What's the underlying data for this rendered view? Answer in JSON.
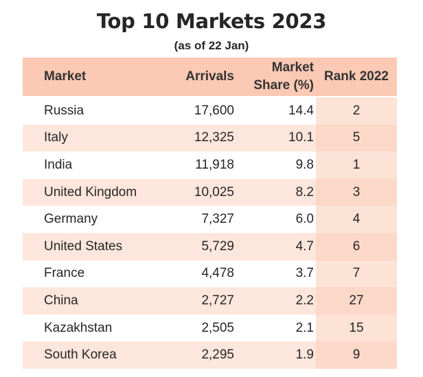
{
  "title": "Top 10 Markets 2023",
  "subtitle": "(as of 22 Jan)",
  "columns": {
    "market": "Market",
    "arrivals": "Arrivals",
    "share_line1": "Market",
    "share_line2": "Share (%)",
    "rank": "Rank 2022"
  },
  "rows": [
    {
      "market": "Russia",
      "arrivals": "17,600",
      "share": "14.4",
      "rank": "2"
    },
    {
      "market": "Italy",
      "arrivals": "12,325",
      "share": "10.1",
      "rank": "5"
    },
    {
      "market": "India",
      "arrivals": "11,918",
      "share": "9.8",
      "rank": "1"
    },
    {
      "market": "United Kingdom",
      "arrivals": "10,025",
      "share": "8.2",
      "rank": "3"
    },
    {
      "market": "Germany",
      "arrivals": "7,327",
      "share": "6.0",
      "rank": "4"
    },
    {
      "market": "United States",
      "arrivals": "5,729",
      "share": "4.7",
      "rank": "6"
    },
    {
      "market": "France",
      "arrivals": "4,478",
      "share": "3.7",
      "rank": "7"
    },
    {
      "market": "China",
      "arrivals": "2,727",
      "share": "2.2",
      "rank": "27"
    },
    {
      "market": "Kazakhstan",
      "arrivals": "2,505",
      "share": "2.1",
      "rank": "15"
    },
    {
      "market": "South Korea",
      "arrivals": "2,295",
      "share": "1.9",
      "rank": "9"
    }
  ],
  "colors": {
    "header_bg": "#fbc9b4",
    "row_shade": "#fde6dc",
    "rank_bg": "#fde2d6"
  }
}
